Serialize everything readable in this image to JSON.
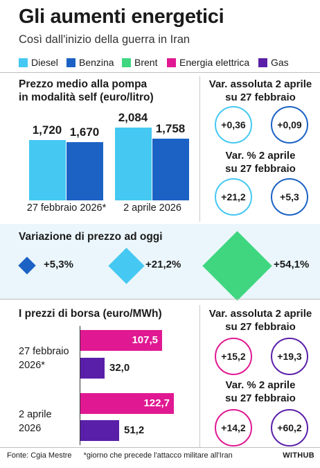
{
  "title": "Gli aumenti energetici",
  "subtitle": "Così dall'inizio della guerra in Iran",
  "colors": {
    "diesel": "#45c8f2",
    "benzina": "#1b62c4",
    "brent": "#3fd67f",
    "energia": "#e01892",
    "gas": "#5a1fa8"
  },
  "legend": [
    {
      "label": "Diesel",
      "color": "#45c8f2"
    },
    {
      "label": "Benzina",
      "color": "#1b62c4"
    },
    {
      "label": "Brent",
      "color": "#3fd67f"
    },
    {
      "label": "Energia elettrica",
      "color": "#e01892"
    },
    {
      "label": "Gas",
      "color": "#5a1fa8"
    }
  ],
  "fuel": {
    "title_line1": "Prezzo medio alla pompa",
    "title_line2": "in modalità self (euro/litro)",
    "abs_title_line1": "Var. assoluta 2 aprile",
    "abs_title_line2": "su 27 febbraio",
    "abs_diesel": "+0,36",
    "abs_benzina": "+0,09",
    "pct_title_line1": "Var. % 2 aprile",
    "pct_title_line2": "su 27 febbraio",
    "pct_diesel": "+21,2",
    "pct_benzina": "+5,3"
  },
  "variation": {
    "title": "Variazione di prezzo ad oggi",
    "items": [
      {
        "label": "+5,3%",
        "color": "#1b62c4",
        "value": 5.3
      },
      {
        "label": "+21,2%",
        "color": "#45c8f2",
        "value": 21.2
      },
      {
        "label": "+54,1%",
        "color": "#3fd67f",
        "value": 54.1
      }
    ]
  },
  "exchange": {
    "title": "I prezzi di borsa (euro/MWh)",
    "row1_line1": "27 febbraio",
    "row1_line2": "2026*",
    "row2_line1": "2 aprile",
    "row2_line2": "2026",
    "abs_title_line1": "Var. assoluta 2 aprile",
    "abs_title_line2": "su 27 febbraio",
    "abs_energia": "+15,2",
    "abs_gas": "+19,3",
    "pct_title_line1": "Var. % 2 aprile",
    "pct_title_line2": "su 27 febbraio",
    "pct_energia": "+14,2",
    "pct_gas": "+60,2"
  },
  "footer": {
    "source": "Fonte: Cgia Mestre",
    "note": "*giorno che precede l'attacco militare all'Iran",
    "brand": "WITHUB"
  },
  "chart_data": [
    {
      "type": "bar",
      "title": "Prezzo medio alla pompa in modalità self (euro/litro)",
      "categories": [
        "27 febbraio 2026*",
        "2 aprile 2026"
      ],
      "series": [
        {
          "name": "Diesel",
          "values": [
            1.72,
            2.084
          ],
          "labels": [
            "1,720",
            "2,084"
          ]
        },
        {
          "name": "Benzina",
          "values": [
            1.67,
            1.758
          ],
          "labels": [
            "1,670",
            "1,758"
          ]
        }
      ]
    },
    {
      "type": "bar",
      "orientation": "horizontal",
      "title": "I prezzi di borsa (euro/MWh)",
      "categories": [
        "27 febbraio 2026*",
        "2 aprile 2026"
      ],
      "series": [
        {
          "name": "Energia elettrica",
          "values": [
            107.5,
            122.7
          ],
          "labels": [
            "107,5",
            "122,7"
          ]
        },
        {
          "name": "Gas",
          "values": [
            32.0,
            51.2
          ],
          "labels": [
            "32,0",
            "51,2"
          ]
        }
      ]
    }
  ]
}
